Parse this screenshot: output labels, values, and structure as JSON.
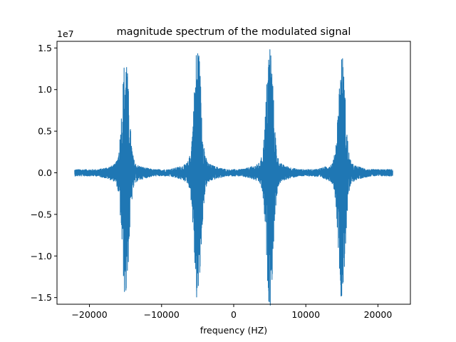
{
  "chart_data": {
    "type": "line",
    "title": "magnitude spectrum of the modulated signal",
    "xlabel": "frequency (HZ)",
    "ylabel": "",
    "y_offset_label": "1e7",
    "xlim": [
      -24500,
      24500
    ],
    "ylim": [
      -1.58,
      1.58
    ],
    "x_ticks": [
      -20000,
      -10000,
      0,
      10000,
      20000
    ],
    "x_tick_labels": [
      "−20000",
      "−10000",
      "0",
      "10000",
      "20000"
    ],
    "y_ticks": [
      -1.5,
      -1.0,
      -0.5,
      0.0,
      0.5,
      1.0,
      1.5
    ],
    "y_tick_labels": [
      "−1.5",
      "−1.0",
      "−0.5",
      "0.0",
      "0.5",
      "1.0",
      "1.5"
    ],
    "grid": false,
    "line_color": "#1f77b4",
    "series": [
      {
        "x_range": [
          -22050,
          22050
        ],
        "noise_floor": 0.04,
        "peaks": [
          {
            "x": -15000,
            "max": 1.27,
            "min": -1.35
          },
          {
            "x": -5000,
            "max": 1.41,
            "min": -1.42
          },
          {
            "x": 5000,
            "max": 1.41,
            "min": -1.42
          },
          {
            "x": 15000,
            "max": 1.27,
            "min": -1.35
          }
        ]
      }
    ]
  }
}
